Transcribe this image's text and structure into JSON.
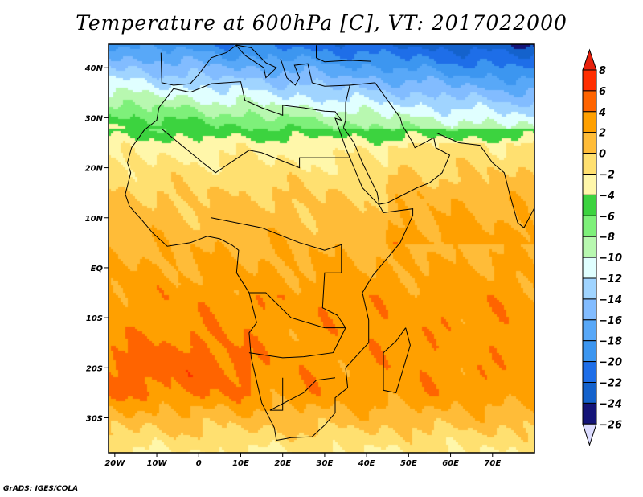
{
  "title": "Temperature at 600hPa [C], VT: 2017022000",
  "credit": "GrADS: IGES/COLA",
  "map": {
    "lon_range": [
      -21.5,
      80
    ],
    "lat_range": [
      -37,
      44.7
    ],
    "lon_ticks": [
      {
        "v": -20,
        "label": "20W"
      },
      {
        "v": -10,
        "label": "10W"
      },
      {
        "v": 0,
        "label": "0"
      },
      {
        "v": 10,
        "label": "10E"
      },
      {
        "v": 20,
        "label": "20E"
      },
      {
        "v": 30,
        "label": "30E"
      },
      {
        "v": 40,
        "label": "40E"
      },
      {
        "v": 50,
        "label": "50E"
      },
      {
        "v": 60,
        "label": "60E"
      },
      {
        "v": 70,
        "label": "70E"
      }
    ],
    "lat_ticks": [
      {
        "v": 40,
        "label": "40N"
      },
      {
        "v": 30,
        "label": "30N"
      },
      {
        "v": 20,
        "label": "20N"
      },
      {
        "v": 10,
        "label": "10N"
      },
      {
        "v": 0,
        "label": "EQ"
      },
      {
        "v": -10,
        "label": "10S"
      },
      {
        "v": -20,
        "label": "20S"
      },
      {
        "v": -30,
        "label": "30S"
      }
    ]
  },
  "colorbar": {
    "levels": [
      8,
      6,
      4,
      2,
      0,
      -2,
      -4,
      -6,
      -8,
      -10,
      -12,
      -14,
      -16,
      -18,
      -20,
      -22,
      -24,
      -26
    ],
    "labels": [
      "8",
      "6",
      "4",
      "2",
      "0",
      "−2",
      "−4",
      "−6",
      "−8",
      "−10",
      "−12",
      "−14",
      "−16",
      "−18",
      "−20",
      "−22",
      "−24",
      "−26"
    ],
    "top_arrow_color": "#e8200c",
    "colors": [
      "#ff2e00",
      "#ff6400",
      "#ffa000",
      "#ffbc38",
      "#ffe070",
      "#fff7aa",
      "#3cd33f",
      "#7ef07a",
      "#b8f8b0",
      "#e0ffff",
      "#a0d4ff",
      "#82bcff",
      "#58a8f8",
      "#3c96f0",
      "#1e6ee8",
      "#1462cc",
      "#141478"
    ],
    "bottom_arrow_color": "#dcdcff"
  }
}
